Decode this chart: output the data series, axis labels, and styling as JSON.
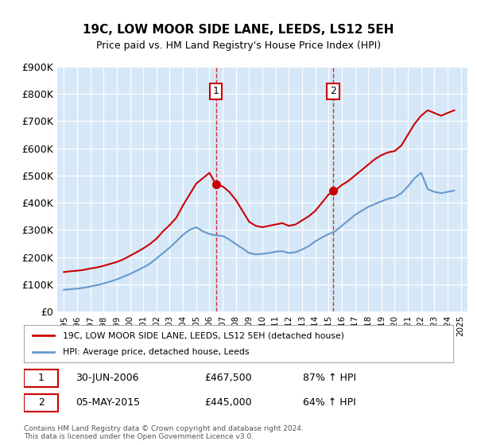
{
  "title": "19C, LOW MOOR SIDE LANE, LEEDS, LS12 5EH",
  "subtitle": "Price paid vs. HM Land Registry's House Price Index (HPI)",
  "legend_line1": "19C, LOW MOOR SIDE LANE, LEEDS, LS12 5EH (detached house)",
  "legend_line2": "HPI: Average price, detached house, Leeds",
  "footnote": "Contains HM Land Registry data © Crown copyright and database right 2024.\nThis data is licensed under the Open Government Licence v3.0.",
  "point1_label": "1",
  "point1_date": "30-JUN-2006",
  "point1_price": "£467,500",
  "point1_hpi": "87% ↑ HPI",
  "point1_x": 2006.5,
  "point1_y": 467500,
  "point2_label": "2",
  "point2_date": "05-MAY-2015",
  "point2_price": "£445,000",
  "point2_hpi": "64% ↑ HPI",
  "point2_x": 2015.35,
  "point2_y": 445000,
  "ylim": [
    0,
    900000
  ],
  "yticks": [
    0,
    100000,
    200000,
    300000,
    400000,
    500000,
    600000,
    700000,
    800000,
    900000
  ],
  "ytick_labels": [
    "£0",
    "£100K",
    "£200K",
    "£300K",
    "£400K",
    "£500K",
    "£600K",
    "£700K",
    "£800K",
    "£900K"
  ],
  "xlim": [
    1994.5,
    2025.5
  ],
  "background_color": "#d6e8f7",
  "plot_bg_color": "#d6e8f7",
  "red_color": "#cc0000",
  "blue_color": "#6699cc",
  "grid_color": "#ffffff",
  "red_line": {
    "x": [
      1995.0,
      1995.5,
      1996.0,
      1996.5,
      1997.0,
      1997.5,
      1998.0,
      1998.5,
      1999.0,
      1999.5,
      2000.0,
      2000.5,
      2001.0,
      2001.5,
      2002.0,
      2002.5,
      2003.0,
      2003.5,
      2004.0,
      2004.5,
      2005.0,
      2005.5,
      2006.0,
      2006.5,
      2007.0,
      2007.5,
      2008.0,
      2008.5,
      2009.0,
      2009.5,
      2010.0,
      2010.5,
      2011.0,
      2011.5,
      2012.0,
      2012.5,
      2013.0,
      2013.5,
      2014.0,
      2014.5,
      2015.0,
      2015.5,
      2016.0,
      2016.5,
      2017.0,
      2017.5,
      2018.0,
      2018.5,
      2019.0,
      2019.5,
      2020.0,
      2020.5,
      2021.0,
      2021.5,
      2022.0,
      2022.5,
      2023.0,
      2023.5,
      2024.0,
      2024.5
    ],
    "y": [
      145000,
      148000,
      150000,
      153000,
      158000,
      162000,
      168000,
      175000,
      182000,
      192000,
      205000,
      218000,
      232000,
      248000,
      268000,
      295000,
      318000,
      345000,
      390000,
      430000,
      470000,
      490000,
      510000,
      467500,
      460000,
      440000,
      410000,
      370000,
      330000,
      315000,
      310000,
      315000,
      320000,
      325000,
      315000,
      320000,
      335000,
      350000,
      370000,
      400000,
      430000,
      445000,
      465000,
      480000,
      500000,
      520000,
      540000,
      560000,
      575000,
      585000,
      590000,
      610000,
      650000,
      690000,
      720000,
      740000,
      730000,
      720000,
      730000,
      740000
    ]
  },
  "blue_line": {
    "x": [
      1995.0,
      1995.5,
      1996.0,
      1996.5,
      1997.0,
      1997.5,
      1998.0,
      1998.5,
      1999.0,
      1999.5,
      2000.0,
      2000.5,
      2001.0,
      2001.5,
      2002.0,
      2002.5,
      2003.0,
      2003.5,
      2004.0,
      2004.5,
      2005.0,
      2005.5,
      2006.0,
      2006.5,
      2007.0,
      2007.5,
      2008.0,
      2008.5,
      2009.0,
      2009.5,
      2010.0,
      2010.5,
      2011.0,
      2011.5,
      2012.0,
      2012.5,
      2013.0,
      2013.5,
      2014.0,
      2014.5,
      2015.0,
      2015.5,
      2016.0,
      2016.5,
      2017.0,
      2017.5,
      2018.0,
      2018.5,
      2019.0,
      2019.5,
      2020.0,
      2020.5,
      2021.0,
      2021.5,
      2022.0,
      2022.5,
      2023.0,
      2023.5,
      2024.0,
      2024.5
    ],
    "y": [
      80000,
      82000,
      84000,
      87000,
      92000,
      97000,
      103000,
      110000,
      118000,
      128000,
      138000,
      150000,
      162000,
      176000,
      195000,
      215000,
      235000,
      258000,
      282000,
      300000,
      310000,
      295000,
      285000,
      280000,
      278000,
      265000,
      248000,
      232000,
      215000,
      210000,
      212000,
      215000,
      220000,
      222000,
      215000,
      218000,
      228000,
      240000,
      258000,
      272000,
      285000,
      295000,
      315000,
      335000,
      355000,
      370000,
      385000,
      395000,
      405000,
      415000,
      420000,
      435000,
      460000,
      490000,
      510000,
      450000,
      440000,
      435000,
      440000,
      445000
    ]
  }
}
